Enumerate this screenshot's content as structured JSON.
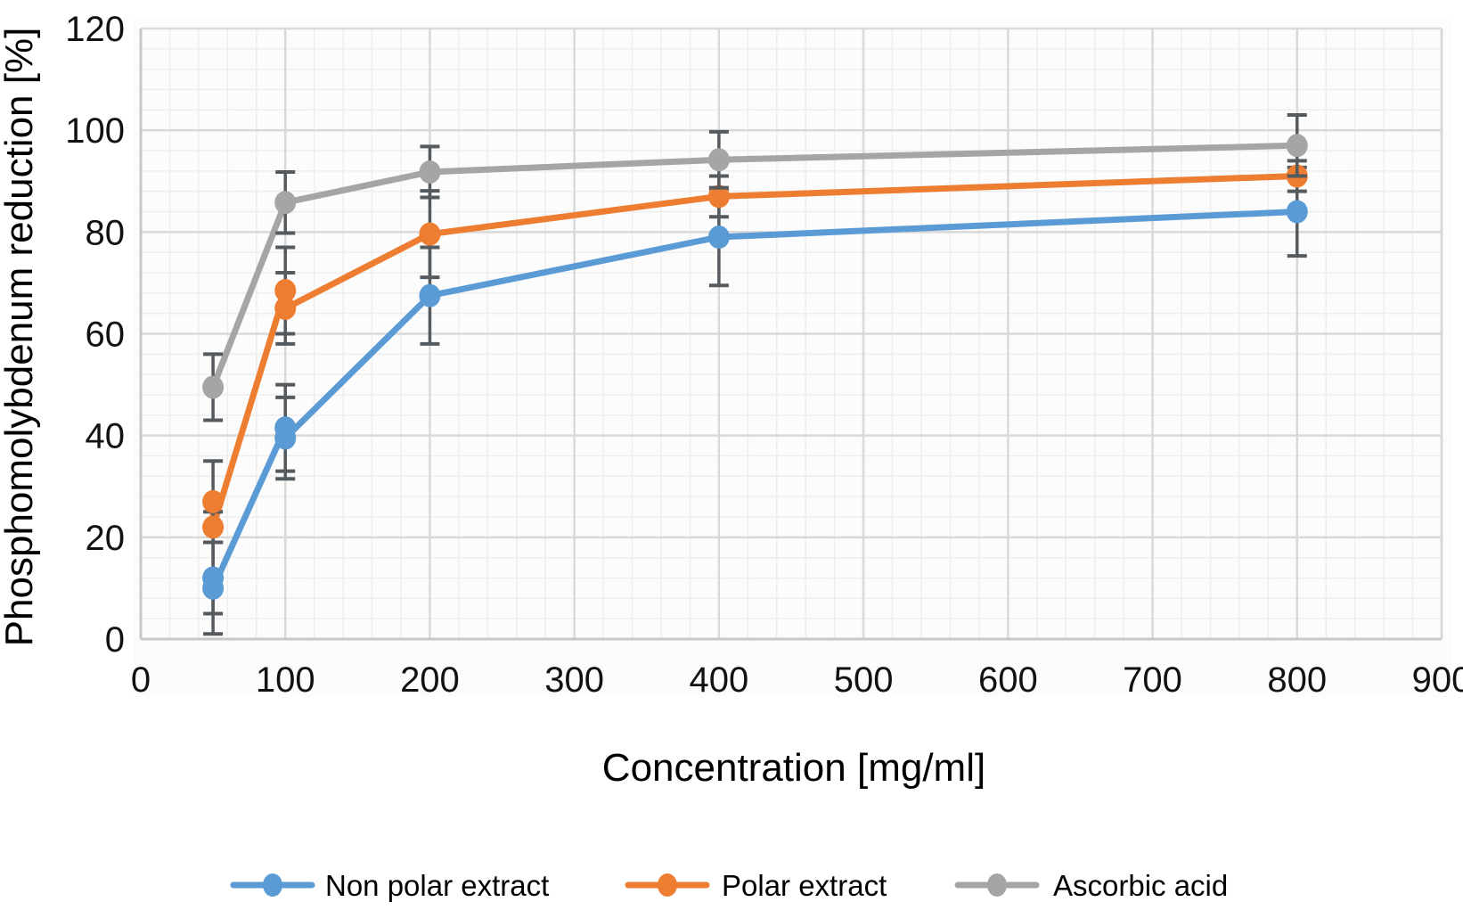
{
  "chart_data": {
    "type": "line",
    "title": "",
    "xlabel": "Concentration [mg/ml]",
    "ylabel": "Phosphomolybdenum reduction [%]",
    "xlim": [
      0,
      900
    ],
    "ylim": [
      0,
      120
    ],
    "xticks": [
      0,
      100,
      200,
      300,
      400,
      500,
      600,
      700,
      800,
      900
    ],
    "yticks": [
      0,
      20,
      40,
      60,
      80,
      100,
      120
    ],
    "grid": true,
    "error_bars": true,
    "legend_position": "bottom",
    "series": [
      {
        "name": "Non polar extract",
        "color": "#5b9bd5",
        "points": [
          {
            "x": 50,
            "y": 12,
            "err": 7
          },
          {
            "x": 50,
            "y": 10,
            "err": 9
          },
          {
            "x": 100,
            "y": 41.5,
            "err": 8.5
          },
          {
            "x": 100,
            "y": 39.5,
            "err": 8
          },
          {
            "x": 200,
            "y": 67.5,
            "err": 9.5
          },
          {
            "x": 400,
            "y": 79,
            "err": 9.5
          },
          {
            "x": 800,
            "y": 84,
            "err": 8.7
          }
        ]
      },
      {
        "name": "Polar extract",
        "color": "#ed7d31",
        "points": [
          {
            "x": 50,
            "y": 27,
            "err": 8
          },
          {
            "x": 50,
            "y": 22,
            "err": 3
          },
          {
            "x": 100,
            "y": 68.5,
            "err": 8.5
          },
          {
            "x": 100,
            "y": 65,
            "err": 7
          },
          {
            "x": 200,
            "y": 79.6,
            "err": 8.5
          },
          {
            "x": 400,
            "y": 87,
            "err": 4
          },
          {
            "x": 800,
            "y": 91,
            "err": 3
          }
        ]
      },
      {
        "name": "Ascorbic acid",
        "color": "#a5a5a5",
        "points": [
          {
            "x": 50,
            "y": 49.5,
            "err": 6.5
          },
          {
            "x": 100,
            "y": 85.8,
            "err": 6
          },
          {
            "x": 200,
            "y": 91.8,
            "err": 5
          },
          {
            "x": 400,
            "y": 94.2,
            "err": 5.5
          },
          {
            "x": 800,
            "y": 97,
            "err": 6
          }
        ]
      }
    ],
    "error_bar_color": "#555a5f",
    "grid_color_major": "#d9d9d9",
    "grid_color_minor": "#eeeeee"
  }
}
